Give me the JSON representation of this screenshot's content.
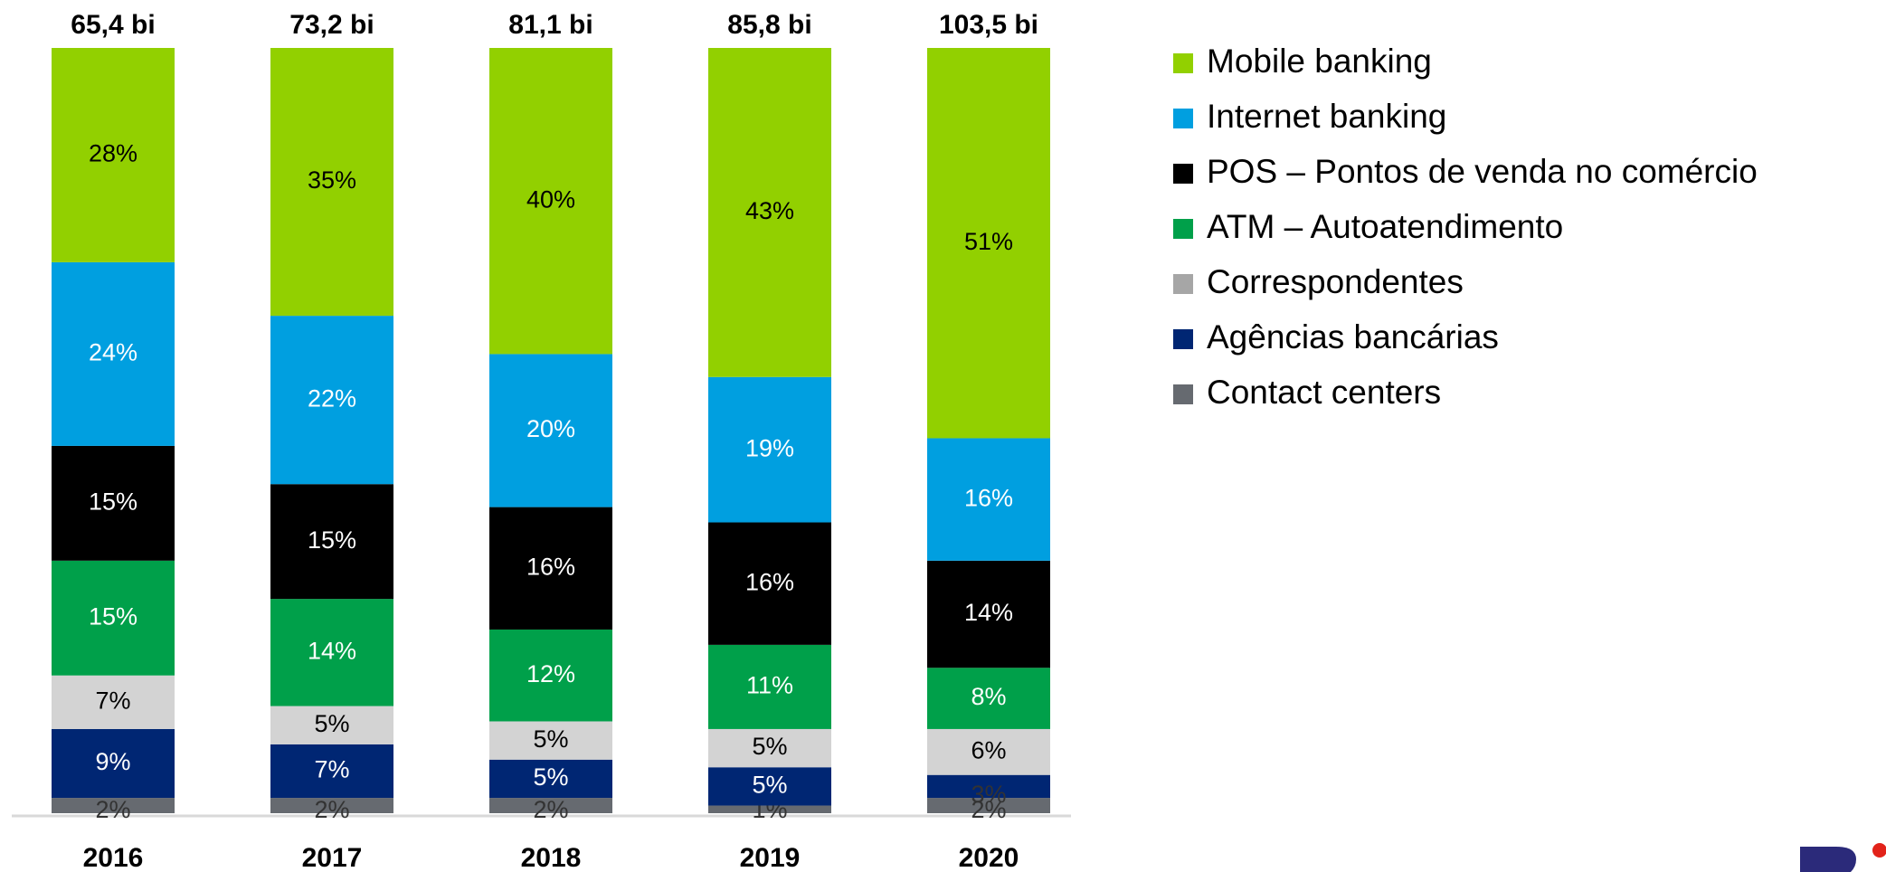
{
  "chart_data": {
    "type": "stacked_bar_100",
    "categories": [
      "2016",
      "2017",
      "2018",
      "2019",
      "2020"
    ],
    "totals": [
      65.4,
      73.2,
      81.1,
      85.8,
      103.5
    ],
    "total_labels": [
      "65,4 bi",
      "73,2 bi",
      "81,1 bi",
      "85,8 bi",
      "103,5 bi"
    ],
    "ylim": [
      0,
      100
    ],
    "series": [
      {
        "name": "Mobile banking",
        "color": "#92d000",
        "values": [
          28,
          35,
          40,
          43,
          51
        ],
        "value_labels": [
          "28%",
          "35%",
          "40%",
          "43%",
          "51%"
        ]
      },
      {
        "name": "Internet banking",
        "color": "#009fe0",
        "values": [
          24,
          22,
          20,
          19,
          16
        ],
        "value_labels": [
          "24%",
          "22%",
          "20%",
          "19%",
          "16%"
        ]
      },
      {
        "name": "POS – Pontos de venda no comércio",
        "color": "#000000",
        "values": [
          15,
          15,
          16,
          16,
          14
        ],
        "value_labels": [
          "15%",
          "15%",
          "16%",
          "16%",
          "14%"
        ]
      },
      {
        "name": "ATM – Autoatendimento",
        "color": "#00a04a",
        "values": [
          15,
          14,
          12,
          11,
          8
        ],
        "value_labels": [
          "15%",
          "14%",
          "12%",
          "11%",
          "8%"
        ]
      },
      {
        "name": "Correspondentes",
        "color": "#d3d3d3",
        "values": [
          7,
          5,
          5,
          5,
          6
        ],
        "value_labels": [
          "7%",
          "5%",
          "5%",
          "5%",
          "6%"
        ]
      },
      {
        "name": "Agências bancárias",
        "color": "#002673",
        "values": [
          9,
          7,
          5,
          5,
          3
        ],
        "value_labels": [
          "9%",
          "7%",
          "5%",
          "5%",
          "3%"
        ]
      },
      {
        "name": "Contact centers",
        "color": "#666a70",
        "values": [
          2,
          2,
          2,
          1,
          2
        ],
        "value_labels": [
          "2%",
          "2%",
          "2%",
          "1%",
          "2%"
        ]
      }
    ],
    "legend": "right"
  }
}
